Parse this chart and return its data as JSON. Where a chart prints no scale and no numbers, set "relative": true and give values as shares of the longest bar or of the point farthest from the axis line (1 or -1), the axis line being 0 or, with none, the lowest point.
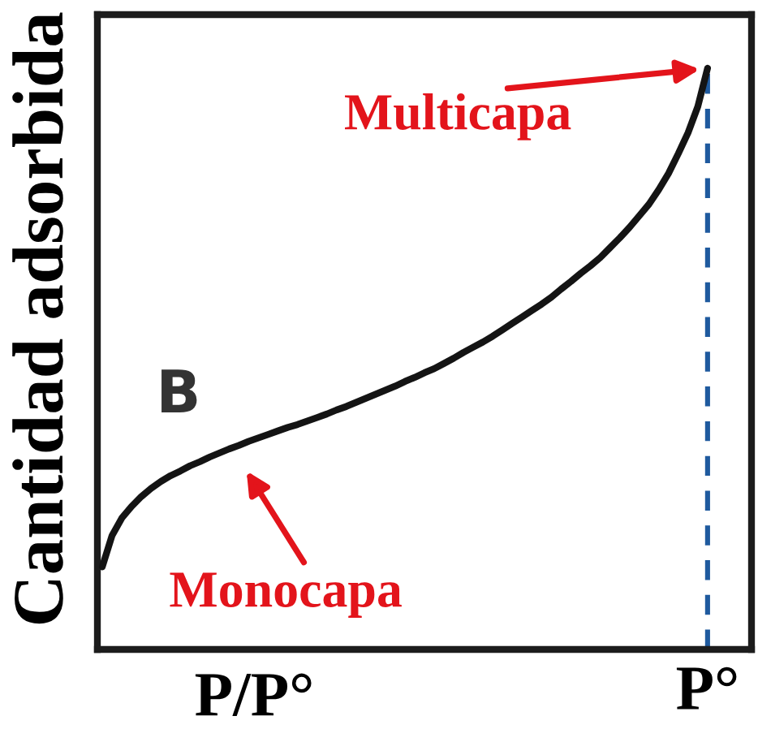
{
  "chart_data": {
    "type": "line",
    "relative": true,
    "xlabel": "P/P°",
    "ylabel": "Cantidad adsorbida",
    "line_style": "solid",
    "categories": [
      null,
      null,
      null,
      null,
      null,
      null,
      null,
      null,
      null,
      null,
      null,
      null,
      null,
      null,
      null,
      null,
      null,
      null,
      null,
      null,
      null,
      null,
      null,
      null,
      null,
      null,
      null,
      null,
      null,
      null,
      null,
      null,
      null,
      null,
      null,
      null,
      null,
      null,
      null,
      null,
      null,
      null,
      null,
      null,
      null,
      null,
      null,
      null,
      null,
      null,
      null,
      null,
      null,
      null,
      null,
      null,
      null,
      null,
      null,
      null,
      null,
      null,
      null,
      null,
      null,
      null,
      null
    ],
    "series": [
      {
        "color": "#141414",
        "values": [
          0.142,
          0.196,
          0.226,
          0.246,
          0.263,
          0.277,
          0.289,
          0.299,
          0.307,
          0.316,
          0.323,
          0.331,
          0.338,
          0.345,
          0.351,
          0.358,
          0.364,
          0.37,
          0.376,
          0.382,
          0.387,
          0.393,
          0.399,
          0.405,
          0.412,
          0.418,
          0.425,
          0.432,
          0.439,
          0.446,
          0.453,
          0.461,
          0.468,
          0.476,
          0.483,
          0.492,
          0.501,
          0.511,
          0.52,
          0.529,
          0.539,
          0.55,
          0.561,
          0.572,
          0.583,
          0.594,
          0.606,
          0.62,
          0.633,
          0.647,
          0.66,
          0.674,
          0.691,
          0.708,
          0.726,
          0.746,
          0.766,
          0.791,
          0.819,
          0.853,
          0.889,
          0.934,
          1.0,
          null,
          null,
          null,
          null
        ]
      }
    ],
    "annotations": [
      "B",
      "Monocapa",
      "Multicapa",
      "P°"
    ]
  }
}
